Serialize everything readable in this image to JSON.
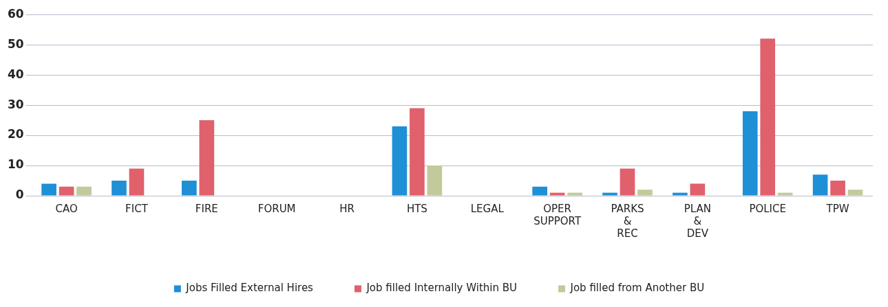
{
  "chart_data": {
    "type": "bar",
    "categories": [
      "CAO",
      "FICT",
      "FIRE",
      "FORUM",
      "HR",
      "HTS",
      "LEGAL",
      "OPER SUPPORT",
      "PARKS & REC",
      "PLAN & DEV",
      "POLICE",
      "TPW"
    ],
    "series": [
      {
        "name": "Jobs Filled External Hires",
        "color": "#1f8fd6",
        "values": [
          4,
          5,
          5,
          0,
          0,
          23,
          0,
          3,
          1,
          1,
          28,
          7
        ]
      },
      {
        "name": "Job filled Internally Within BU",
        "color": "#e0606c",
        "values": [
          3,
          9,
          25,
          0,
          0,
          29,
          0,
          1,
          9,
          4,
          52,
          5
        ]
      },
      {
        "name": "Job filled from Another BU",
        "color": "#c2c99a",
        "values": [
          3,
          0,
          0,
          0,
          0,
          10,
          0,
          1,
          2,
          0,
          1,
          2
        ]
      }
    ],
    "ylim": [
      0,
      60
    ],
    "yticks": [
      0,
      10,
      20,
      30,
      40,
      50,
      60
    ],
    "grid": "y",
    "legend": "bottom"
  }
}
